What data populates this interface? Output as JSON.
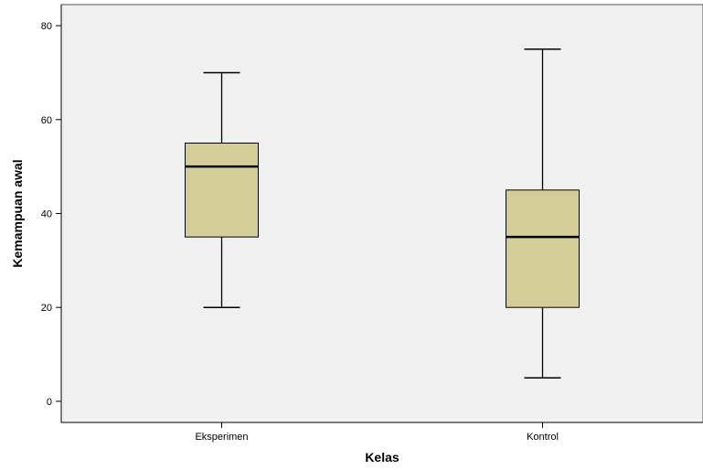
{
  "chart_data": {
    "type": "boxplot",
    "xlabel": "Kelas",
    "ylabel": "Kemampuan awal",
    "ylim": [
      -4.5,
      84.5
    ],
    "yticks": [
      0,
      20,
      40,
      60,
      80
    ],
    "grid": false,
    "categories": [
      "Eksperimen",
      "Kontrol"
    ],
    "boxes": [
      {
        "category": "Eksperimen",
        "min": 20,
        "q1": 35,
        "median": 50,
        "q3": 55,
        "max": 70
      },
      {
        "category": "Kontrol",
        "min": 5,
        "q1": 20,
        "median": 35,
        "q3": 45,
        "max": 75
      }
    ],
    "colors": {
      "plot_background": "#f0f0f0",
      "box_fill": "#d3ce97",
      "stroke": "#000000"
    }
  }
}
